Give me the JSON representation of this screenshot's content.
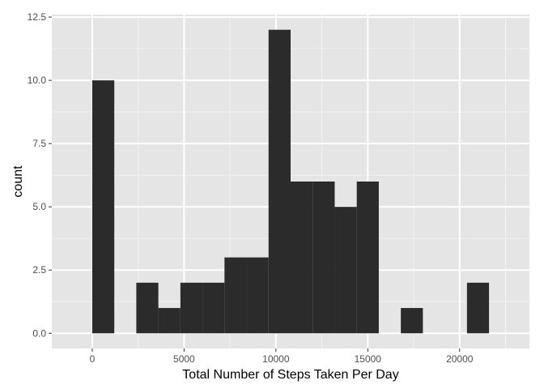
{
  "chart_data": {
    "type": "bar",
    "subtype": "histogram",
    "title": "",
    "xlabel": "Total Number of Steps Taken Per Day",
    "ylabel": "count",
    "xlim": [
      -2200,
      23800
    ],
    "ylim": [
      -0.6,
      12.6
    ],
    "x_ticks": [
      0,
      5000,
      10000,
      15000,
      20000
    ],
    "x_tick_labels": [
      "0",
      "5000",
      "10000",
      "15000",
      "20000"
    ],
    "y_ticks": [
      0,
      2.5,
      5,
      7.5,
      10,
      12.5
    ],
    "y_tick_labels": [
      "0.0",
      "2.5",
      "5.0",
      "7.5",
      "10.0",
      "12.5"
    ],
    "bin_width": 1200,
    "bins": [
      {
        "x0": 0,
        "x1": 1200,
        "count": 10
      },
      {
        "x0": 1200,
        "x1": 2400,
        "count": 0
      },
      {
        "x0": 2400,
        "x1": 3600,
        "count": 2
      },
      {
        "x0": 3600,
        "x1": 4800,
        "count": 1
      },
      {
        "x0": 4800,
        "x1": 6000,
        "count": 2
      },
      {
        "x0": 6000,
        "x1": 7200,
        "count": 2
      },
      {
        "x0": 7200,
        "x1": 8400,
        "count": 3
      },
      {
        "x0": 8400,
        "x1": 9600,
        "count": 3
      },
      {
        "x0": 9600,
        "x1": 10800,
        "count": 12
      },
      {
        "x0": 10800,
        "x1": 12000,
        "count": 6
      },
      {
        "x0": 12000,
        "x1": 13200,
        "count": 6
      },
      {
        "x0": 13200,
        "x1": 14400,
        "count": 5
      },
      {
        "x0": 14400,
        "x1": 15600,
        "count": 6
      },
      {
        "x0": 15600,
        "x1": 16800,
        "count": 0
      },
      {
        "x0": 16800,
        "x1": 18000,
        "count": 1
      },
      {
        "x0": 18000,
        "x1": 19200,
        "count": 0
      },
      {
        "x0": 19200,
        "x1": 20400,
        "count": 0
      },
      {
        "x0": 20400,
        "x1": 21600,
        "count": 2
      }
    ],
    "grid": true,
    "legend": "none",
    "colors": {
      "panel_background": "#e5e5e5",
      "grid_major": "#ffffff",
      "grid_minor": "#f2f2f2",
      "bar_fill": "#2b2b2b",
      "tick_label": "#4d4d4d"
    }
  }
}
